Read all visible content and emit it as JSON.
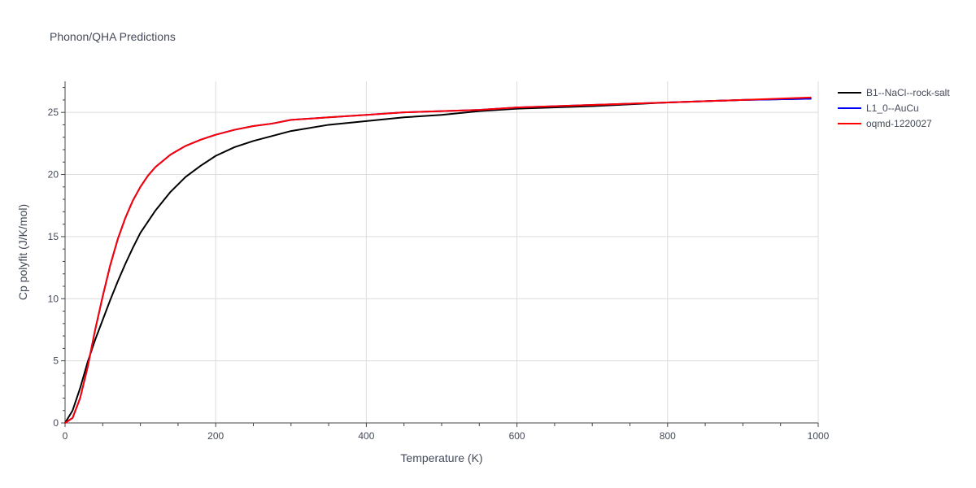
{
  "chart_data": {
    "type": "line",
    "title": "Phonon/QHA Predictions",
    "xlabel": "Temperature (K)",
    "ylabel": "Cp polyfit (J/K/mol)",
    "xlim": [
      0,
      1000
    ],
    "ylim": [
      0,
      27.5
    ],
    "xticks": [
      0,
      200,
      400,
      600,
      800,
      1000
    ],
    "yticks": [
      0,
      5,
      10,
      15,
      20,
      25
    ],
    "grid": true,
    "legend_position": "right",
    "series": [
      {
        "name": "B1--NaCl--rock-salt",
        "color": "#000000",
        "x": [
          0,
          10,
          20,
          30,
          40,
          50,
          60,
          70,
          80,
          90,
          100,
          120,
          140,
          160,
          180,
          200,
          225,
          250,
          275,
          300,
          350,
          400,
          450,
          500,
          550,
          600,
          700,
          800,
          900,
          990
        ],
        "y": [
          0,
          1.0,
          2.8,
          4.9,
          6.7,
          8.3,
          9.9,
          11.4,
          12.8,
          14.1,
          15.3,
          17.1,
          18.6,
          19.8,
          20.7,
          21.5,
          22.2,
          22.7,
          23.1,
          23.5,
          24.0,
          24.3,
          24.6,
          24.8,
          25.1,
          25.3,
          25.5,
          25.8,
          26.0,
          26.1
        ]
      },
      {
        "name": "L1_0--AuCu",
        "color": "#0000ff",
        "x": [
          0,
          10,
          20,
          30,
          40,
          50,
          60,
          70,
          80,
          90,
          100,
          110,
          120,
          140,
          160,
          180,
          200,
          225,
          250,
          275,
          300,
          350,
          400,
          450,
          500,
          550,
          600,
          700,
          800,
          900,
          990
        ],
        "y": [
          0,
          0.4,
          2.0,
          4.5,
          7.5,
          10.2,
          12.7,
          14.8,
          16.5,
          17.9,
          19.0,
          19.9,
          20.6,
          21.6,
          22.3,
          22.8,
          23.2,
          23.6,
          23.9,
          24.1,
          24.4,
          24.6,
          24.8,
          25.0,
          25.1,
          25.2,
          25.4,
          25.6,
          25.8,
          26.0,
          26.1
        ]
      },
      {
        "name": "oqmd-1220027",
        "color": "#ff0000",
        "x": [
          0,
          10,
          20,
          30,
          40,
          50,
          60,
          70,
          80,
          90,
          100,
          110,
          120,
          140,
          160,
          180,
          200,
          225,
          250,
          275,
          300,
          350,
          400,
          450,
          500,
          550,
          600,
          700,
          800,
          900,
          990
        ],
        "y": [
          0,
          0.4,
          2.0,
          4.5,
          7.5,
          10.2,
          12.7,
          14.8,
          16.5,
          17.9,
          19.0,
          19.9,
          20.6,
          21.6,
          22.3,
          22.8,
          23.2,
          23.6,
          23.9,
          24.1,
          24.4,
          24.6,
          24.8,
          25.0,
          25.1,
          25.2,
          25.4,
          25.6,
          25.8,
          26.0,
          26.2
        ]
      }
    ]
  }
}
